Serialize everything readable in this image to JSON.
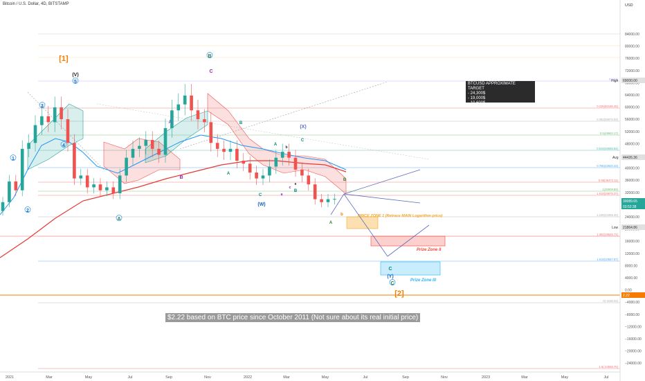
{
  "header": {
    "title": "Bitcoin / U.S. Dollar, 4D, BITSTAMP",
    "currency": "USD"
  },
  "price_axis": {
    "ticks": [
      "84000.00",
      "80000.00",
      "76000.00",
      "72000.00",
      "68000.00",
      "64000.00",
      "60000.00",
      "56000.00",
      "52000.00",
      "48000.00",
      "44000.00",
      "40000.00",
      "36000.00",
      "32000.00",
      "28000.00",
      "24000.00",
      "20000.00",
      "16000.00",
      "12000.00",
      "8000.00",
      "4000.00",
      "0.00",
      "−4000.00",
      "−8000.00",
      "−12000.00",
      "−16000.00",
      "−20000.00",
      "−24000.00"
    ],
    "high_label": "High",
    "high_value": "69000.00",
    "avg_label": "Avg",
    "avg_value": "44426.36",
    "current_value": "30089.65",
    "countdown": "03:52:38",
    "low_label": "Low",
    "low_value": "21864.86",
    "zero_marker": "2.22"
  },
  "time_axis": {
    "ticks": [
      "2021",
      "Mar",
      "May",
      "Jul",
      "Sep",
      "Nov",
      "2022",
      "Mar",
      "May",
      "Jul",
      "Sep",
      "Nov",
      "2023",
      "Mar",
      "May",
      "Jul"
    ]
  },
  "fib_labels": [
    "0.5(71)",
    "0.236(60185.45)",
    "0.382(55876.93)",
    "0.5(49963.17)",
    "0.618(46566.84)",
    "0.786(42920.43)",
    "0.88(36472.11)",
    "1(30908.89)",
    "1.618(28875.37)",
    "1.236(24355.40)",
    "1.382(19625.71)",
    "1.618(10587.87)",
    "0(-3185.02)",
    "1.5(-24556.76)"
  ],
  "wave_labels": {
    "w1": "[1]",
    "w2": "[2]",
    "v": "(V)",
    "five": "5",
    "three": "3",
    "four": "4",
    "one": "1",
    "two": "2",
    "bA": "B",
    "aA": "A",
    "cC": "C",
    "A1": "A",
    "B1": "B",
    "A2": "A",
    "B2": "B",
    "C2": "C",
    "W": "(W)",
    "X": "(X)",
    "Y": "(Y)",
    "C3": "C",
    "Cc": "C",
    "A3": "A",
    "B3": "B",
    "C4": "C",
    "b1": "b",
    "e1": "e",
    "c1": "c",
    "a1": "a",
    "A4": "A",
    "b2": "b",
    "B4": "B"
  },
  "zones": {
    "zone1": "PRICE ZONE 1 (Retrace MAIN Logarithm price)",
    "zone2": "Prize Zone II",
    "zone3": "Prize Zone III"
  },
  "target_box": {
    "title": "BTCUSD APPROXIMATE TARGET",
    "lines": [
      "- 24,300$",
      "- 19,000$",
      "- 10,600$"
    ]
  },
  "note": "$2.22 based on BTC price since October 2011 (Not sure about its real initial price)",
  "colors": {
    "up": "#26a69a",
    "down": "#ef5350",
    "ema_fast": "#2196f3",
    "ema_slow": "#e53935",
    "zone1": "#f6a623",
    "zone2": "#f44336",
    "zone3": "#29b6f6",
    "wave_orange": "#f57c00"
  },
  "chart_data": {
    "type": "candlestick",
    "symbol": "BTCUSD",
    "interval": "4D",
    "ylim": [
      -26000,
      90000
    ],
    "xrange": [
      "2021-01",
      "2023-07"
    ],
    "approximate_closes": [
      29000,
      36000,
      33000,
      47000,
      49000,
      55000,
      58000,
      56000,
      61000,
      57000,
      49000,
      37000,
      38000,
      34000,
      35000,
      33000,
      34000,
      32000,
      38000,
      44000,
      47000,
      48000,
      50000,
      47000,
      45000,
      54000,
      60000,
      62000,
      65000,
      60000,
      57000,
      56000,
      49000,
      47000,
      46000,
      47000,
      43000,
      42000,
      39000,
      37000,
      38000,
      41000,
      44000,
      46000,
      44000,
      40000,
      38000,
      35000,
      30000,
      29000,
      30000,
      30089
    ],
    "targets": [
      24300,
      19000,
      10600
    ],
    "zone_ranges": [
      [
        22000,
        25000
      ],
      [
        16500,
        19800
      ],
      [
        7000,
        11000
      ]
    ],
    "avg_price": 44426.36,
    "high_price": 69000,
    "low_price": 21864.86,
    "last_price": 30089.65
  }
}
